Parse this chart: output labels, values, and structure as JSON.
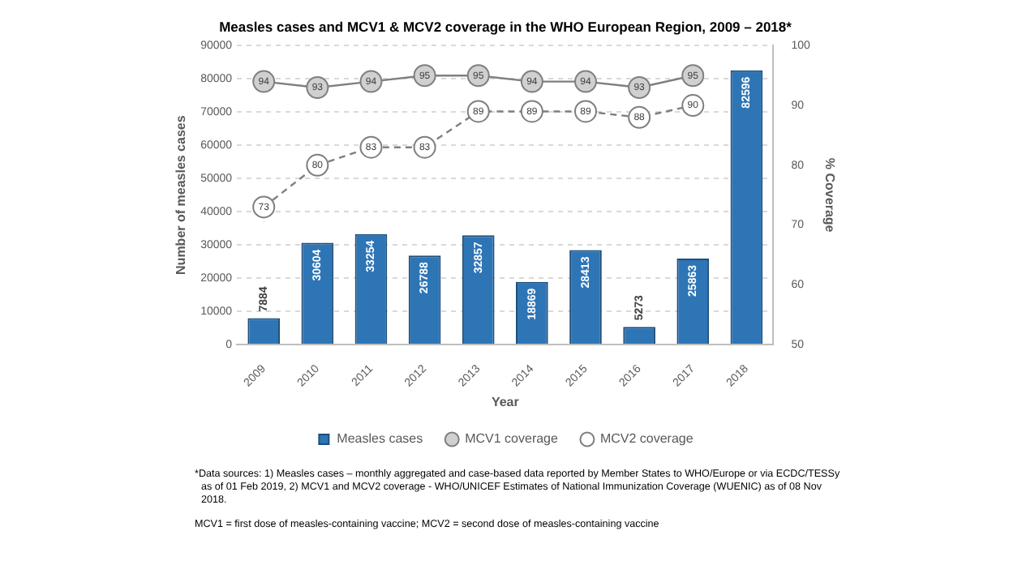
{
  "chart_data": {
    "type": "bar",
    "title": "Measles cases and MCV1 & MCV2 coverage in the WHO European Region, 2009 – 2018*",
    "xlabel": "Year",
    "ylabel": "Number of measles cases",
    "y2label": "% Coverage",
    "categories": [
      "2009",
      "2010",
      "2011",
      "2012",
      "2013",
      "2014",
      "2015",
      "2016",
      "2017",
      "2018"
    ],
    "series": [
      {
        "name": "Measles cases",
        "color": "#2e75b6",
        "values": [
          7884,
          30604,
          33254,
          26788,
          32857,
          18869,
          28413,
          5273,
          25863,
          82596
        ]
      },
      {
        "name": "MCV1 coverage",
        "type": "line",
        "axis": "y2",
        "color": "#7f7f7f",
        "marker": "circle",
        "line_style": "solid",
        "values": [
          94,
          93,
          94,
          95,
          95,
          94,
          94,
          93,
          95,
          null
        ]
      },
      {
        "name": "MCV2 coverage",
        "type": "line",
        "axis": "y2",
        "color": "#7f7f7f",
        "marker": "circle",
        "line_style": "dashed",
        "values": [
          73,
          80,
          83,
          83,
          89,
          89,
          89,
          88,
          90,
          null
        ]
      }
    ],
    "ylim": [
      0,
      90000
    ],
    "yticks": [
      0,
      10000,
      20000,
      30000,
      40000,
      50000,
      60000,
      70000,
      80000,
      90000
    ],
    "y2lim": [
      50,
      100
    ],
    "y2ticks": [
      50,
      60,
      70,
      80,
      90,
      100
    ],
    "grid": "y",
    "legend": "bottom",
    "data_labels": true,
    "annotations": [
      "*Data sources: 1) Measles cases – monthly aggregated and case-based data reported by Member States to WHO/Europe or via ECDC/TESSy as of 01 Feb 2019, 2) MCV1 and MCV2 coverage - WHO/UNICEF Estimates of National Immunization Coverage (WUENIC) as of 08 Nov 2018.",
      "MCV1 = first dose of measles-containing vaccine; MCV2 = second dose of measles-containing vaccine"
    ]
  }
}
